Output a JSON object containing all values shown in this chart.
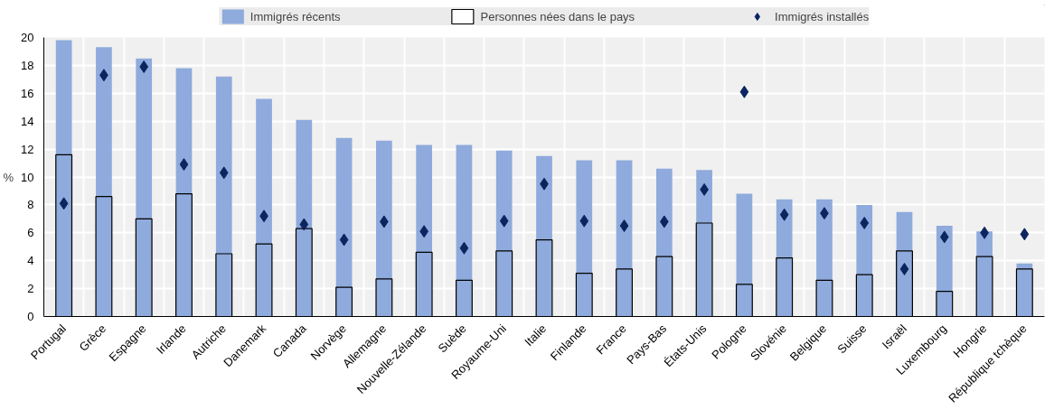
{
  "chart_data": {
    "type": "bar",
    "ylabel": "%",
    "categories": [
      "Portugal",
      "Grèce",
      "Espagne",
      "Irlande",
      "Autriche",
      "Danemark",
      "Canada",
      "Norvège",
      "Allemagne",
      "Nouvelle-Zélande",
      "Suède",
      "Royaume-Uni",
      "Italie",
      "Finlande",
      "France",
      "Pays-Bas",
      "États-Unis",
      "Pologne",
      "Slovénie",
      "Belgique",
      "Suisse",
      "Israël",
      "Luxembourg",
      "Hongrie",
      "République tchèque"
    ],
    "series": [
      {
        "name": "Immigrés récents",
        "color": "#8faadc",
        "values": [
          19.8,
          19.3,
          18.5,
          17.8,
          17.2,
          15.6,
          14.1,
          12.8,
          12.6,
          12.3,
          12.3,
          11.9,
          11.5,
          11.2,
          11.2,
          10.6,
          10.5,
          8.8,
          8.4,
          8.4,
          8.0,
          7.5,
          6.5,
          6.1,
          3.8
        ]
      },
      {
        "name": "Personnes nées dans le pays",
        "color": "#000000",
        "values": [
          11.6,
          8.6,
          7.0,
          8.8,
          4.5,
          5.2,
          6.3,
          2.1,
          2.7,
          4.6,
          2.6,
          4.7,
          5.5,
          3.1,
          3.4,
          4.3,
          6.7,
          2.3,
          4.2,
          2.6,
          3.0,
          4.7,
          1.8,
          4.3,
          3.4
        ]
      },
      {
        "name": "Immigrés installés",
        "type": "scatter",
        "color": "#0b2560",
        "marker": "diamond",
        "values": [
          8.1,
          17.3,
          17.9,
          10.9,
          10.3,
          7.2,
          6.6,
          5.5,
          6.8,
          6.1,
          4.9,
          6.85,
          9.5,
          6.85,
          6.5,
          6.8,
          9.1,
          16.1,
          7.3,
          7.4,
          6.7,
          3.4,
          5.7,
          6.0,
          5.9
        ]
      }
    ],
    "ylim": [
      0,
      20
    ],
    "yticks": [
      0,
      2,
      4,
      6,
      8,
      10,
      12,
      14,
      16,
      18,
      20
    ],
    "grid": true,
    "legend": "top"
  }
}
